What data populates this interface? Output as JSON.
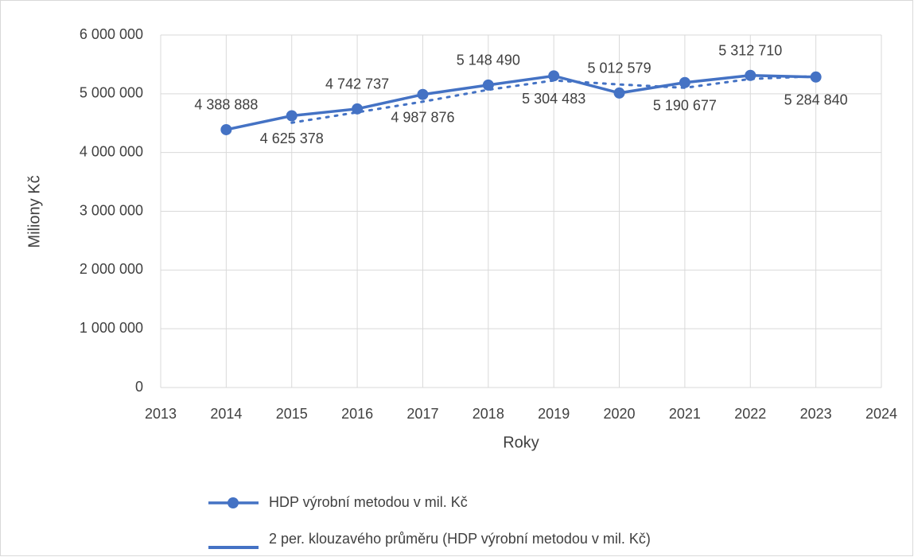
{
  "chart_data": {
    "type": "line",
    "xlabel": "Roky",
    "ylabel": "Miliony Kč",
    "x": [
      2014,
      2015,
      2016,
      2017,
      2018,
      2019,
      2020,
      2021,
      2022,
      2023
    ],
    "xlim": [
      2013,
      2024
    ],
    "xticks": [
      2013,
      2014,
      2015,
      2016,
      2017,
      2018,
      2019,
      2020,
      2021,
      2022,
      2023,
      2024
    ],
    "ylim": [
      0,
      6000000
    ],
    "yticks": [
      {
        "value": 0,
        "label": "0"
      },
      {
        "value": 1000000,
        "label": "1 000 000"
      },
      {
        "value": 2000000,
        "label": "2 000 000"
      },
      {
        "value": 3000000,
        "label": "3 000 000"
      },
      {
        "value": 4000000,
        "label": "4 000 000"
      },
      {
        "value": 5000000,
        "label": "5 000 000"
      },
      {
        "value": 6000000,
        "label": "6 000 000"
      }
    ],
    "grid": true,
    "legend": "bottom",
    "series": [
      {
        "name": "HDP výrobní metodou v mil. Kč",
        "color": "#4472c4",
        "marker": "circle",
        "line_style": "solid",
        "values": [
          4388888,
          4625378,
          4742737,
          4987876,
          5148490,
          5304483,
          5012579,
          5190677,
          5312710,
          5284840
        ],
        "value_labels": [
          "4 388 888",
          "4 625 378",
          "4 742 737",
          "4 987 876",
          "5 148 490",
          "5 304 483",
          "5 012 579",
          "5 190 677",
          "5 312 710",
          "5 284 840"
        ]
      },
      {
        "name": "2 per. klouzavého průměru (HDP výrobní metodou v mil. Kč)",
        "color": "#4472c4",
        "marker": "none",
        "line_style": "dotted",
        "values": [
          null,
          4507133,
          4684058,
          4865307,
          5068183,
          5226487,
          5158531,
          5101628,
          5251694,
          5298775
        ]
      }
    ]
  }
}
